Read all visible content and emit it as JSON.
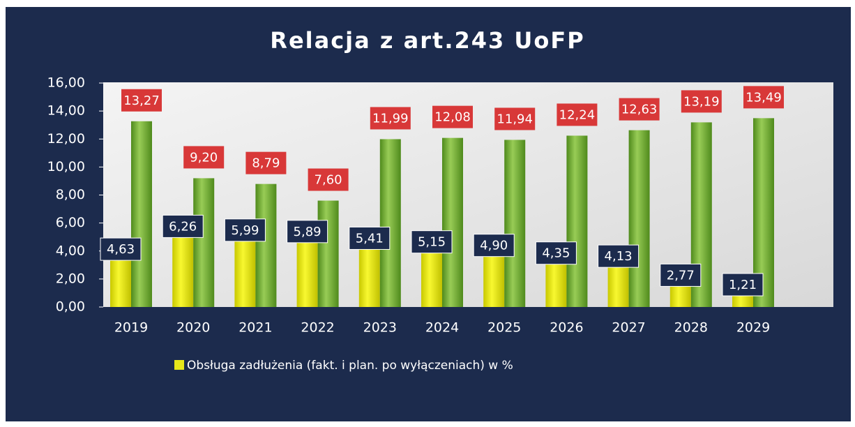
{
  "chart_data": {
    "type": "bar",
    "title": "Relacja z art.243 UoFP",
    "categories": [
      "2019",
      "2020",
      "2021",
      "2022",
      "2023",
      "2024",
      "2025",
      "2026",
      "2027",
      "2028",
      "2029"
    ],
    "series": [
      {
        "name": "Obsługa zadłużenia (fakt. i plan. po wyłączeniach) w %",
        "color": "#e6e61a",
        "values": [
          4.63,
          6.26,
          5.99,
          5.89,
          5.41,
          5.15,
          4.9,
          4.35,
          4.13,
          2.77,
          1.21
        ],
        "value_labels": [
          "4,63",
          "6,26",
          "5,99",
          "5,89",
          "5,41",
          "5,15",
          "4,90",
          "4,35",
          "4,13",
          "2,77",
          "1,21"
        ]
      },
      {
        "color": "#7ab236",
        "values": [
          13.27,
          9.2,
          8.79,
          7.6,
          11.99,
          12.08,
          11.94,
          12.24,
          12.63,
          13.19,
          13.49
        ],
        "value_labels": [
          "13,27",
          "9,20",
          "8,79",
          "7,60",
          "11,99",
          "12,08",
          "11,94",
          "12,24",
          "12,63",
          "13,19",
          "13,49"
        ]
      }
    ],
    "ylim": [
      0,
      16
    ],
    "yticks": [
      {
        "value": 0,
        "label": "0,00"
      },
      {
        "value": 2,
        "label": "2,00"
      },
      {
        "value": 4,
        "label": "4,00"
      },
      {
        "value": 6,
        "label": "6,00"
      },
      {
        "value": 8,
        "label": "8,00"
      },
      {
        "value": 10,
        "label": "10,00"
      },
      {
        "value": 12,
        "label": "12,00"
      },
      {
        "value": 14,
        "label": "14,00"
      },
      {
        "value": 16,
        "label": "16,00"
      }
    ],
    "legend": "bottom"
  }
}
